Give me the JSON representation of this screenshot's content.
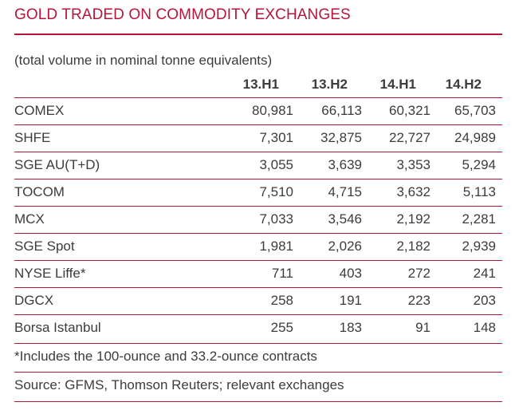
{
  "title": "GOLD TRADED ON COMMODITY EXCHANGES",
  "subtitle": "(total volume in nominal tonne equivalents)",
  "columns": [
    "13.H1",
    "13.H2",
    "14.H1",
    "14.H2"
  ],
  "rows": [
    {
      "label": "COMEX",
      "values": [
        "80,981",
        "66,113",
        "60,321",
        "65,703"
      ]
    },
    {
      "label": "SHFE",
      "values": [
        "7,301",
        "32,875",
        "22,727",
        "24,989"
      ]
    },
    {
      "label": "SGE AU(T+D)",
      "values": [
        "3,055",
        "3,639",
        "3,353",
        "5,294"
      ]
    },
    {
      "label": "TOCOM",
      "values": [
        "7,510",
        "4,715",
        "3,632",
        "5,113"
      ]
    },
    {
      "label": "MCX",
      "values": [
        "7,033",
        "3,546",
        "2,192",
        "2,281"
      ]
    },
    {
      "label": "SGE Spot",
      "values": [
        "1,981",
        "2,026",
        "2,182",
        "2,939"
      ]
    },
    {
      "label": "NYSE Liffe*",
      "values": [
        "711",
        "403",
        "272",
        "241"
      ]
    },
    {
      "label": "DGCX",
      "values": [
        "258",
        "191",
        "223",
        "203"
      ]
    },
    {
      "label": "Borsa Istanbul",
      "values": [
        "255",
        "183",
        "91",
        "148"
      ]
    }
  ],
  "footnote": "*Includes the 100-ounce and 33.2-ounce contracts",
  "source": "Source: GFMS, Thomson Reuters; relevant exchanges",
  "colors": {
    "accent": "#b5163a",
    "text": "#3c3c3c"
  }
}
